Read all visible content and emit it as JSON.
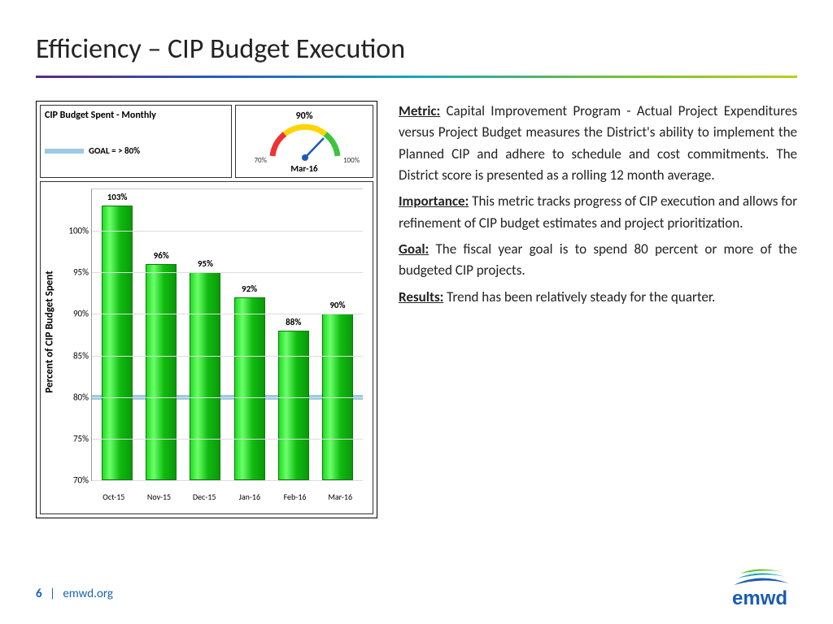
{
  "slide_title": "Efficiency – CIP Budget Execution",
  "chart": {
    "title": "CIP Budget Spent - Monthly",
    "goal_text": "GOAL = >  80%",
    "ylabel": "Percent of CIP Budget Spent",
    "ymin": 70,
    "ymax": 105,
    "yticks": [
      70,
      75,
      80,
      85,
      90,
      95,
      100
    ],
    "ytick_labels": [
      "70%",
      "75%",
      "80%",
      "85%",
      "90%",
      "95%",
      "100%"
    ],
    "goal_value": 80,
    "categories": [
      "Oct-15",
      "Nov-15",
      "Dec-15",
      "Jan-16",
      "Feb-16",
      "Mar-16"
    ],
    "values": [
      103,
      96,
      95,
      92,
      88,
      90
    ],
    "value_labels": [
      "103%",
      "96%",
      "95%",
      "92%",
      "88%",
      "90%"
    ],
    "bar_gradient_from": "#1fdc1f",
    "bar_gradient_to": "#0a990a",
    "goal_line_color": "#9ec9e2",
    "grid_color": "#dcdcdc",
    "label_fontsize": 11
  },
  "gauge": {
    "value_label": "90%",
    "value": 90,
    "min": 70,
    "max": 100,
    "min_label": "70%",
    "max_label": "100%",
    "month": "Mar-16",
    "arc_colors": [
      "#e33",
      "#ffd400",
      "#3cc43c"
    ],
    "needle_color": "#1a5cb3"
  },
  "text": {
    "metric_label": "Metric:",
    "metric_body": " Capital Improvement Program - Actual Project Expenditures versus Project Budget measures the District's ability to implement the Planned CIP and adhere to schedule and cost commitments. The District score is presented as a rolling 12 month average.",
    "importance_label": "Importance:",
    "importance_body": "  This metric tracks progress of CIP execution and allows for refinement of CIP budget estimates and project prioritization.",
    "goal_label": "Goal:",
    "goal_body": "  The fiscal year goal is to spend 80 percent or more of the budgeted CIP projects.",
    "results_label": "Results:",
    "results_body": "  Trend has been relatively steady for the quarter."
  },
  "footer": {
    "page": "6",
    "sep": "|",
    "url": "emwd.org"
  },
  "logo": {
    "text": "emwd",
    "wave_colors": [
      "#6fbf3f",
      "#1aa6b7",
      "#1a5cb3"
    ]
  }
}
